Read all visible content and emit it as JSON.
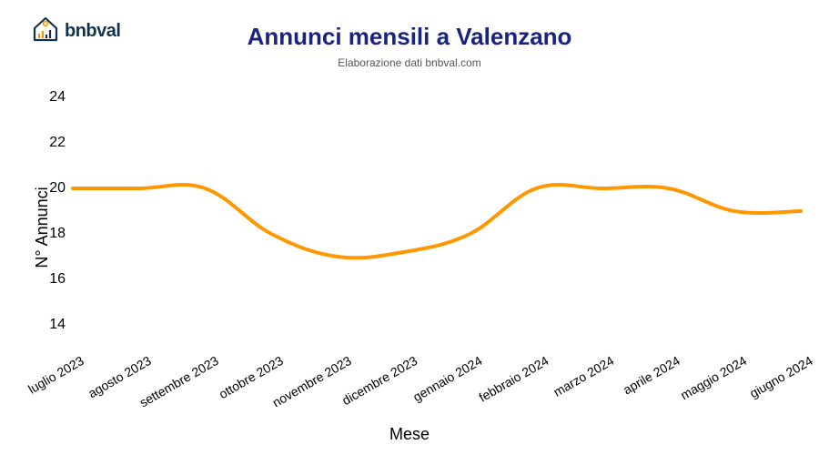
{
  "logo": {
    "text": "bnbval"
  },
  "chart": {
    "type": "line",
    "title": "Annunci mensili a Valenzano",
    "subtitle": "Elaborazione dati bnbval.com",
    "title_color": "#1a237e",
    "title_fontsize": 26,
    "subtitle_fontsize": 12,
    "ylabel": "N° Annunci",
    "xlabel": "Mese",
    "label_fontsize": 18,
    "background_color": "#ffffff",
    "line_color": "#ff9800",
    "line_width": 4,
    "ylim": [
      13,
      25
    ],
    "yticks": [
      14,
      16,
      18,
      20,
      22,
      24
    ],
    "categories": [
      "luglio 2023",
      "agosto 2023",
      "settembre 2023",
      "ottobre 2023",
      "novembre 2023",
      "dicembre 2023",
      "gennaio 2024",
      "febbraio 2024",
      "marzo 2024",
      "aprile 2024",
      "maggio 2024",
      "giugno 2024"
    ],
    "values": [
      20,
      20,
      20,
      18,
      17,
      17.2,
      18,
      20,
      20,
      20,
      19,
      19
    ],
    "xtick_rotate_deg": -30,
    "smooth": true
  }
}
